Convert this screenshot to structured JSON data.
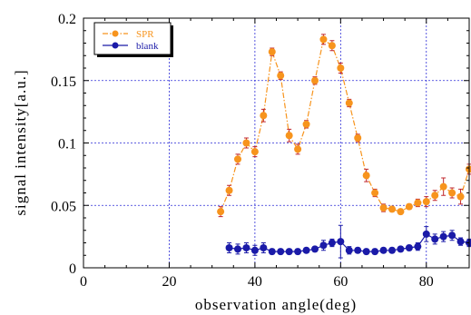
{
  "chart_data": {
    "type": "line",
    "xlabel": "observation angle(deg)",
    "ylabel": "signal intensity[a.u.]",
    "xlim": [
      0,
      90
    ],
    "ylim": [
      0,
      0.2
    ],
    "x_ticks": [
      {
        "value": 0,
        "label": "0"
      },
      {
        "value": 20,
        "label": "20"
      },
      {
        "value": 40,
        "label": "40"
      },
      {
        "value": 60,
        "label": "60"
      },
      {
        "value": 80,
        "label": "80"
      }
    ],
    "y_ticks": [
      {
        "value": 0,
        "label": "0"
      },
      {
        "value": 0.05,
        "label": "0.05"
      },
      {
        "value": 0.1,
        "label": "0.1"
      },
      {
        "value": 0.15,
        "label": "0.15"
      },
      {
        "value": 0.2,
        "label": "0.2"
      }
    ],
    "grid": true,
    "legend_position": "top-left",
    "series": [
      {
        "name": "SPR",
        "color": "#f7941d",
        "error_color": "#c0272d",
        "line_style": "dash-dot",
        "x": [
          32,
          34,
          36,
          38,
          40,
          42,
          44,
          46,
          48,
          50,
          52,
          54,
          56,
          58,
          60,
          62,
          64,
          66,
          68,
          70,
          72,
          74,
          76,
          78,
          80,
          82,
          84,
          86,
          88,
          90
        ],
        "y": [
          0.045,
          0.062,
          0.087,
          0.1,
          0.093,
          0.122,
          0.173,
          0.154,
          0.106,
          0.095,
          0.115,
          0.15,
          0.183,
          0.178,
          0.16,
          0.132,
          0.104,
          0.074,
          0.06,
          0.048,
          0.047,
          0.045,
          0.049,
          0.052,
          0.053,
          0.058,
          0.065,
          0.06,
          0.057,
          0.079
        ],
        "err": [
          0.004,
          0.004,
          0.004,
          0.004,
          0.004,
          0.005,
          0.003,
          0.003,
          0.005,
          0.004,
          0.003,
          0.003,
          0.004,
          0.004,
          0.004,
          0.003,
          0.003,
          0.005,
          0.003,
          0.003,
          0.002,
          0.002,
          0.002,
          0.003,
          0.004,
          0.004,
          0.007,
          0.004,
          0.006,
          0.004
        ]
      },
      {
        "name": "blank",
        "color": "#1a1aa8",
        "error_color": "#1a1aa8",
        "line_style": "solid",
        "x": [
          34,
          36,
          38,
          40,
          42,
          44,
          46,
          48,
          50,
          52,
          54,
          56,
          58,
          60,
          62,
          64,
          66,
          68,
          70,
          72,
          74,
          76,
          78,
          80,
          82,
          84,
          86,
          88,
          90
        ],
        "y": [
          0.016,
          0.015,
          0.016,
          0.014,
          0.016,
          0.013,
          0.013,
          0.013,
          0.013,
          0.014,
          0.015,
          0.018,
          0.02,
          0.021,
          0.014,
          0.014,
          0.013,
          0.013,
          0.014,
          0.014,
          0.015,
          0.016,
          0.017,
          0.027,
          0.023,
          0.025,
          0.026,
          0.021,
          0.02
        ],
        "err": [
          0.004,
          0.004,
          0.004,
          0.004,
          0.004,
          0.002,
          0.002,
          0.002,
          0.002,
          0.002,
          0.002,
          0.004,
          0.003,
          0.013,
          0.003,
          0.002,
          0.002,
          0.002,
          0.002,
          0.002,
          0.002,
          0.002,
          0.003,
          0.006,
          0.004,
          0.004,
          0.004,
          0.003,
          0.003
        ]
      }
    ]
  }
}
